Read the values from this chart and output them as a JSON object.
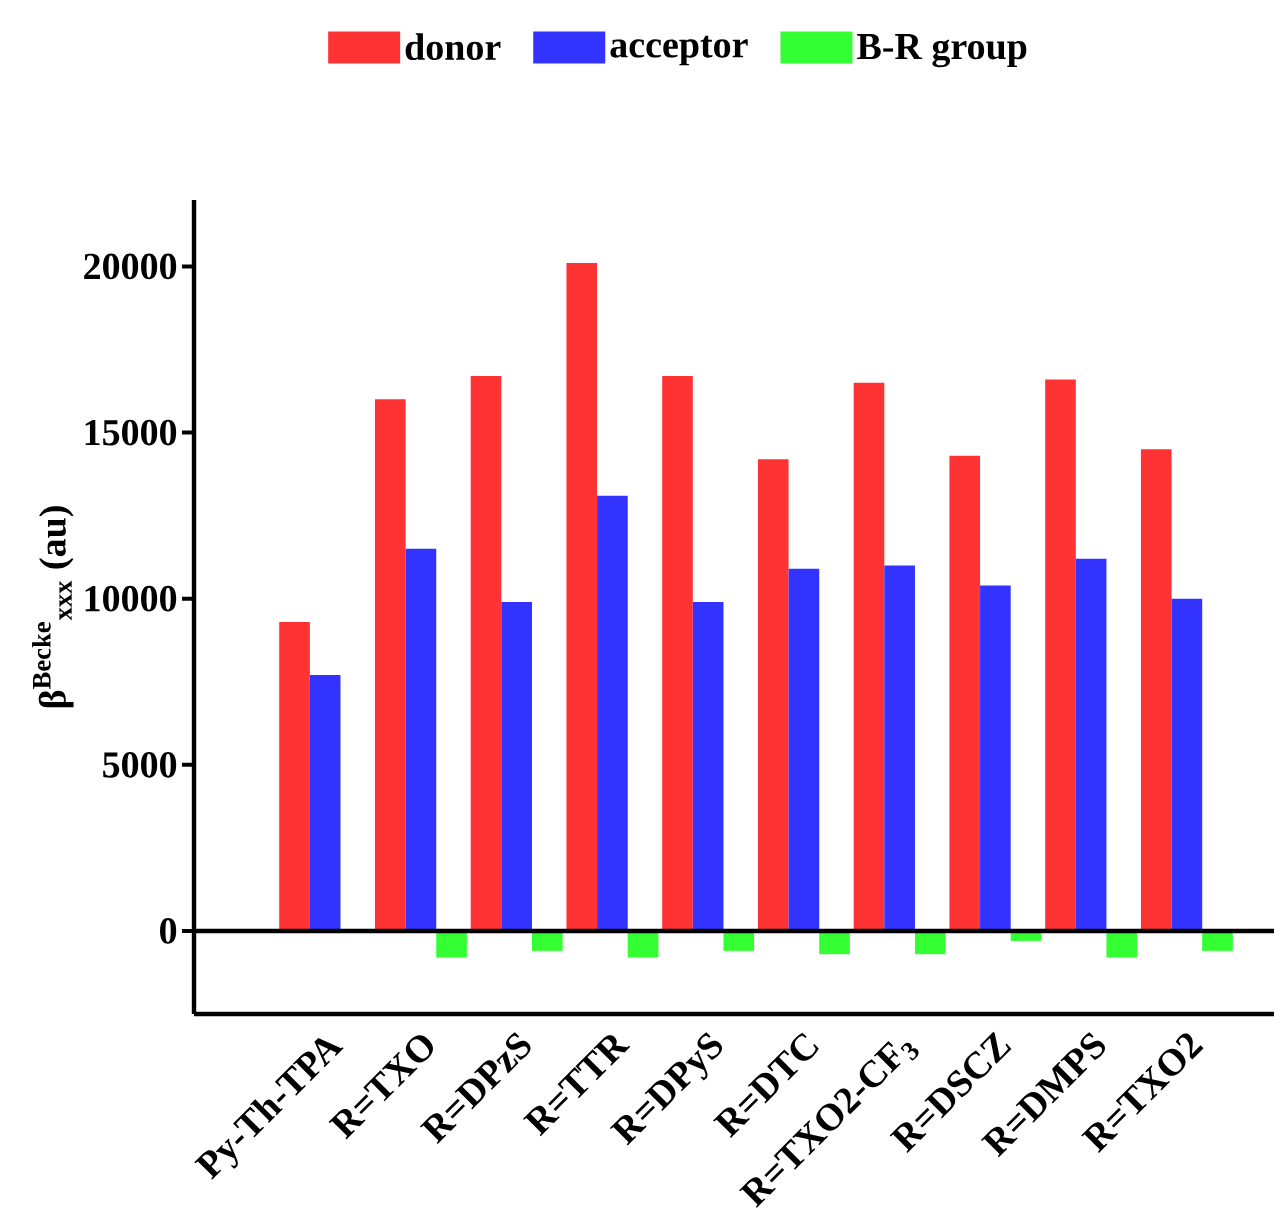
{
  "chart_data": {
    "type": "bar",
    "ylabel": "β$^{Becke}$$_{xxx}$ (au)",
    "categories": [
      "Py-Th-TPA",
      "R=TXO",
      "R=DPzS",
      "R=TTR",
      "R=DPyS",
      "R=DTC",
      "R=TXO2-CF$_{3}$",
      "R=DSCZ",
      "R=DMPS",
      "R=TXO2"
    ],
    "series": [
      {
        "name": "donor",
        "color": "#ff3333",
        "values": [
          9300,
          16000,
          16700,
          20100,
          16700,
          14200,
          16500,
          14300,
          16600,
          14500
        ]
      },
      {
        "name": "acceptor",
        "color": "#3333ff",
        "values": [
          7700,
          11500,
          9900,
          13100,
          9900,
          10900,
          11000,
          10400,
          11200,
          10000
        ]
      },
      {
        "name": "B-R group",
        "color": "#33ff33",
        "values": [
          null,
          -800,
          -600,
          -800,
          -600,
          -700,
          -700,
          -300,
          -800,
          -600
        ]
      }
    ],
    "ylim": [
      -2500,
      22000
    ],
    "yticks": [
      0,
      5000,
      10000,
      15000,
      20000
    ],
    "ref_lines": [
      {
        "axis": "y",
        "value": 0
      }
    ],
    "legend": "top",
    "grid": false
  }
}
